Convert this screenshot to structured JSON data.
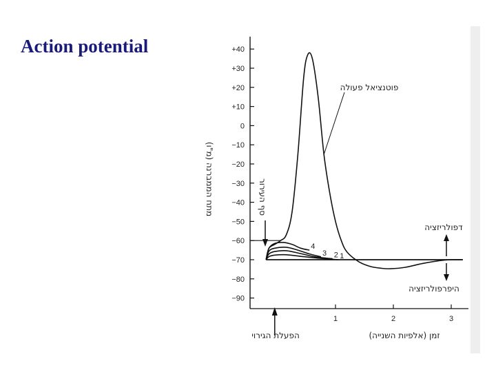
{
  "slide": {
    "title": "Action potential"
  },
  "chart_data": {
    "type": "line",
    "title": "",
    "ylabel": "מתח הממברנה (מ\"ו)",
    "xlabel": "זמן (אלפיות השנייה)",
    "ylim": [
      -95,
      45
    ],
    "xlim": [
      -0.45,
      3.2
    ],
    "y_ticks": [
      "+40",
      "+30",
      "+20",
      "+10",
      "0",
      "−10",
      "−20",
      "−30",
      "−40",
      "−50",
      "−60",
      "−70",
      "−80",
      "−90"
    ],
    "y_tick_values": [
      40,
      30,
      20,
      10,
      0,
      -10,
      -20,
      -30,
      -40,
      -50,
      -60,
      -70,
      -80,
      -90
    ],
    "x_ticks": [
      "1",
      "2",
      "3"
    ],
    "x_tick_values": [
      1,
      2,
      3
    ],
    "resting_potential": -70,
    "threshold_potential": -60,
    "series": [
      {
        "name": "פוטנציאל פעולה",
        "x": [
          -0.2,
          -0.15,
          -0.05,
          0.05,
          0.15,
          0.25,
          0.35,
          0.45,
          0.52,
          0.6,
          0.7,
          0.8,
          0.9,
          1.0,
          1.1,
          1.2,
          1.4,
          1.6,
          1.8,
          1.95,
          2.2,
          2.5,
          2.8,
          3.0,
          3.2
        ],
        "y": [
          -70,
          -64,
          -62,
          -60,
          -57,
          -45,
          -15,
          25,
          37,
          35,
          15,
          -15,
          -35,
          -50,
          -60,
          -66,
          -71,
          -73.5,
          -74.5,
          -74.7,
          -74,
          -72,
          -70.5,
          -70,
          -70
        ]
      },
      {
        "name": "4",
        "x": [
          -0.2,
          -0.15,
          -0.05,
          0.1,
          0.25,
          0.4,
          0.55
        ],
        "y": [
          -70,
          -64,
          -61.5,
          -61,
          -62,
          -64,
          -65
        ]
      },
      {
        "name": "3",
        "x": [
          -0.2,
          -0.15,
          -0.05,
          0.15,
          0.35,
          0.55,
          0.75
        ],
        "y": [
          -70,
          -65.5,
          -64,
          -63.5,
          -65,
          -67,
          -68.5
        ]
      },
      {
        "name": "2",
        "x": [
          -0.2,
          -0.15,
          -0.05,
          0.15,
          0.4,
          0.65,
          0.95
        ],
        "y": [
          -70,
          -67,
          -65.7,
          -65.3,
          -66.8,
          -68.5,
          -69.5
        ]
      },
      {
        "name": "1",
        "x": [
          -0.2,
          -0.15,
          -0.05,
          0.15,
          0.45,
          0.75,
          1.05
        ],
        "y": [
          -70,
          -68.4,
          -67.6,
          -67.4,
          -68.4,
          -69.3,
          -70
        ]
      }
    ],
    "annotations": [
      {
        "text": "פוטנציאל פעולה"
      },
      {
        "text": "סף העירור"
      },
      {
        "text": "דפולריזציה"
      },
      {
        "text": "היפרפולריזציה"
      },
      {
        "text": "הפעלת הגירוי"
      }
    ]
  }
}
